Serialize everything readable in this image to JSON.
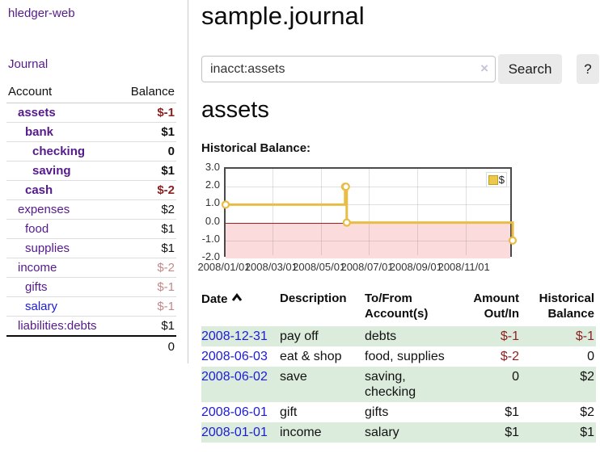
{
  "colors": {
    "link_purple": "#551a8b",
    "link_blue": "#1b1bd8",
    "neg_strong": "#8e1f1f",
    "neg_muted": "#c28989",
    "text": "#111111",
    "row_green": "#dcecdc",
    "chart_line": "#e7bd45",
    "chart_negative_fill": "#fbdbdb",
    "chart_zero_line": "#a02020"
  },
  "sidebar": {
    "app_title": "hledger-web",
    "journal_link": "Journal",
    "accounts_table": {
      "headers": [
        "Account",
        "Balance"
      ],
      "rows": [
        {
          "account": "assets",
          "level": 1,
          "bold": true,
          "balance": "$-1",
          "balance_style": "neg-strong"
        },
        {
          "account": "bank",
          "level": 2,
          "bold": true,
          "balance": "$1",
          "balance_style": "pos"
        },
        {
          "account": "checking",
          "level": 3,
          "bold": true,
          "balance": "0",
          "balance_style": "pos"
        },
        {
          "account": "saving",
          "level": 3,
          "bold": true,
          "balance": "$1",
          "balance_style": "pos"
        },
        {
          "account": "cash",
          "level": 2,
          "bold": true,
          "balance": "$-2",
          "balance_style": "neg-strong"
        },
        {
          "account": "expenses",
          "level": 1,
          "bold": false,
          "balance": "$2",
          "balance_style": "pos"
        },
        {
          "account": "food",
          "level": 2,
          "bold": false,
          "balance": "$1",
          "balance_style": "pos"
        },
        {
          "account": "supplies",
          "level": 2,
          "bold": false,
          "balance": "$1",
          "balance_style": "pos"
        },
        {
          "account": "income",
          "level": 1,
          "bold": false,
          "balance": "$-2",
          "balance_style": "neg-muted"
        },
        {
          "account": "gifts",
          "level": 2,
          "bold": false,
          "balance": "$-1",
          "balance_style": "neg-muted"
        },
        {
          "account": "salary",
          "level": 2,
          "bold": false,
          "balance": "$-1",
          "balance_style": "neg-muted",
          "link_color": "blue"
        },
        {
          "account": "liabilities:debts",
          "level": 1,
          "bold": false,
          "balance": "$1",
          "balance_style": "pos"
        }
      ],
      "total": "0"
    }
  },
  "main": {
    "page_title": "sample.journal",
    "search": {
      "value": "inacct:assets",
      "clear_icon": "×",
      "search_button": "Search",
      "help_button": "?"
    },
    "account_heading": "assets",
    "chart_heading": "Historical Balance:",
    "transactions_table": {
      "headers": [
        {
          "label": "Date",
          "align": "left",
          "sorted": "asc"
        },
        {
          "label": "Description",
          "align": "left"
        },
        {
          "label": "To/From Account(s)",
          "align": "left"
        },
        {
          "label": "Amount Out/In",
          "align": "right"
        },
        {
          "label": "Historical Balance",
          "align": "right"
        }
      ],
      "rows": [
        {
          "date": "2008-12-31",
          "description": "pay off",
          "accounts": "debts",
          "amount": "$-1",
          "balance": "$-1"
        },
        {
          "date": "2008-06-03",
          "description": "eat & shop",
          "accounts": "food, supplies",
          "amount": "$-2",
          "balance": "0"
        },
        {
          "date": "2008-06-02",
          "description": "save",
          "accounts": "saving, checking",
          "amount": "0",
          "balance": "$2"
        },
        {
          "date": "2008-06-01",
          "description": "gift",
          "accounts": "gifts",
          "amount": "$1",
          "balance": "$2"
        },
        {
          "date": "2008-01-01",
          "description": "income",
          "accounts": "salary",
          "amount": "$1",
          "balance": "$1"
        }
      ]
    }
  },
  "chart_data": {
    "type": "line",
    "step": true,
    "title": "Historical Balance",
    "legend": [
      {
        "name": "$",
        "color": "#ecc94b"
      }
    ],
    "legend_position": "top-right",
    "grid": true,
    "x": [
      "2008-01-01",
      "2008-06-01",
      "2008-06-02",
      "2008-06-03",
      "2008-12-31"
    ],
    "series": [
      {
        "name": "$",
        "values": [
          1,
          2,
          2,
          0,
          -1
        ]
      }
    ],
    "xrange": [
      "2008-01-01",
      "2009-01-01"
    ],
    "ylim": [
      -2,
      3
    ],
    "yticks": [
      3.0,
      2.0,
      1.0,
      0.0,
      -1.0,
      -2.0
    ],
    "xticks": [
      {
        "date": "2008-01-01",
        "label": "2008/01/01"
      },
      {
        "date": "2008-03-01",
        "label": "2008/03/01"
      },
      {
        "date": "2008-05-01",
        "label": "2008/05/01"
      },
      {
        "date": "2008-07-01",
        "label": "2008/07/01"
      },
      {
        "date": "2008-09-01",
        "label": "2008/09/01"
      },
      {
        "date": "2008-11-01",
        "label": "2008/11/01"
      }
    ],
    "negative_region_shaded": true
  }
}
